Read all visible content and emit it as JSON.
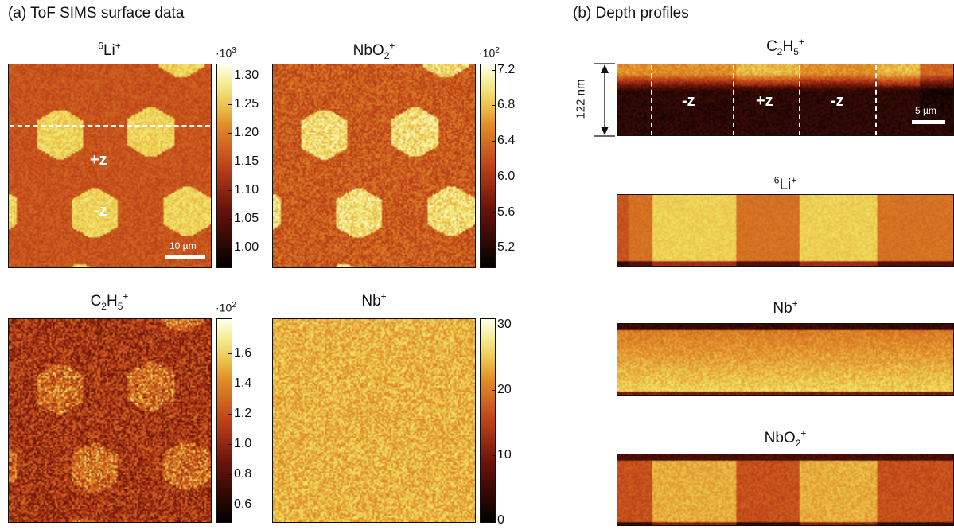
{
  "panel_a": {
    "heading": "(a) ToF SIMS surface data",
    "maps": [
      {
        "ion_pre": "",
        "ion_sup1": "6",
        "ion_main": "Li",
        "ion_sub": "",
        "ion_sup2": "+",
        "multiplier_base": "·10",
        "multiplier_exp": "3",
        "colorbar_ticks": [
          "1.30",
          "1.25",
          "1.20",
          "1.15",
          "1.10",
          "1.05",
          "1.00"
        ],
        "domain_labels": [
          "+z",
          "-z"
        ],
        "scalebar_label": "10 µm"
      },
      {
        "ion_pre": "NbO",
        "ion_sup1": "",
        "ion_main": "",
        "ion_sub": "2",
        "ion_sup2": "+",
        "multiplier_base": "·10",
        "multiplier_exp": "2",
        "colorbar_ticks": [
          "7.2",
          "6.8",
          "6.4",
          "6.0",
          "5.6",
          "5.2"
        ]
      },
      {
        "ion_pre": "C",
        "ion_sub_a": "2",
        "ion_mid": "H",
        "ion_sub": "5",
        "ion_sup2": "+",
        "multiplier_base": "·10",
        "multiplier_exp": "2",
        "colorbar_ticks": [
          "1.6",
          "1.4",
          "1.2",
          "1.0",
          "0.8",
          "0.6"
        ]
      },
      {
        "ion_pre": "Nb",
        "ion_sup2": "+",
        "colorbar_ticks": [
          "30",
          "20",
          "10",
          "0"
        ]
      }
    ]
  },
  "panel_b": {
    "heading": "(b) Depth profiles",
    "profiles": [
      {
        "ion_pre": "C",
        "ion_sub_a": "2",
        "ion_mid": "H",
        "ion_sub": "5",
        "ion_sup2": "+",
        "depth_label": "122 nm",
        "domain_labels": [
          "-z",
          "+z",
          "-z"
        ],
        "scalebar_label": "5 µm"
      },
      {
        "ion_sup1": "6",
        "ion_main": "Li",
        "ion_sup2": "+"
      },
      {
        "ion_main": "Nb",
        "ion_sup2": "+"
      },
      {
        "ion_main": "NbO",
        "ion_sub": "2",
        "ion_sup2": "+"
      }
    ]
  },
  "colors": {
    "dark": "#000000",
    "mid": "#b8401a",
    "bright": "#f0ee70",
    "white": "#ffffff"
  }
}
